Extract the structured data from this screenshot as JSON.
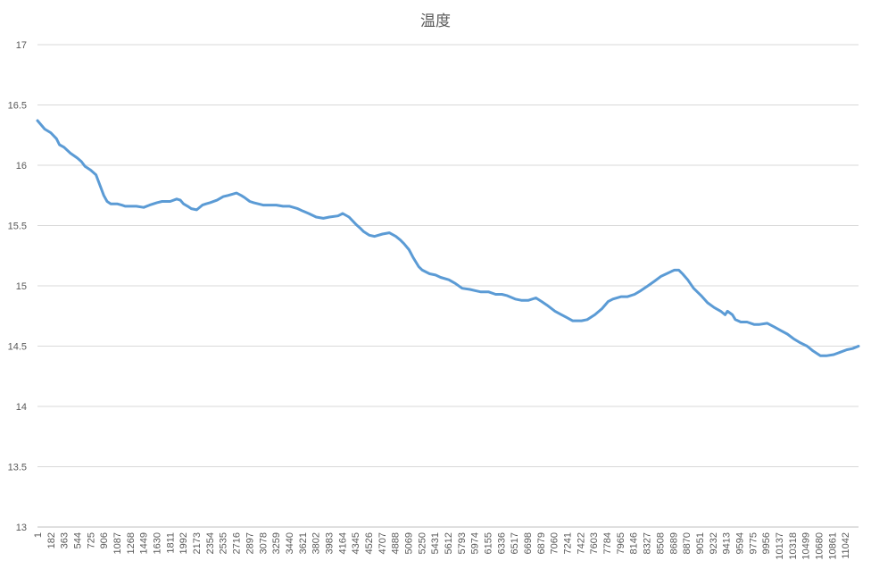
{
  "chart_data": {
    "type": "line",
    "title": "温度",
    "xlabel": "",
    "ylabel": "",
    "ylim": [
      13,
      17
    ],
    "yticks": [
      "13",
      "13.5",
      "14",
      "14.5",
      "15",
      "15.5",
      "16",
      "16.5",
      "17"
    ],
    "xlim": [
      1,
      11200
    ],
    "xtick_labels": [
      "1",
      "182",
      "363",
      "544",
      "725",
      "906",
      "1087",
      "1268",
      "1449",
      "1630",
      "1811",
      "1992",
      "2173",
      "2354",
      "2535",
      "2716",
      "2897",
      "3078",
      "3259",
      "3440",
      "3621",
      "3802",
      "3983",
      "4164",
      "4345",
      "4526",
      "4707",
      "4888",
      "5069",
      "5250",
      "5431",
      "5612",
      "5793",
      "5974",
      "6155",
      "6336",
      "6517",
      "6698",
      "6879",
      "7060",
      "7241",
      "7422",
      "7603",
      "7784",
      "7965",
      "8146",
      "8327",
      "8508",
      "8689",
      "8870",
      "9051",
      "9232",
      "9413",
      "9594",
      "9775",
      "9956",
      "10137",
      "10318",
      "10499",
      "10680",
      "10861",
      "11042"
    ],
    "grid": true,
    "legend": "none",
    "series": [
      {
        "color": "#5b9bd5",
        "x": [
          1,
          100,
          182,
          260,
          300,
          363,
          450,
          544,
          600,
          650,
          725,
          800,
          850,
          906,
          950,
          1000,
          1087,
          1150,
          1200,
          1268,
          1350,
          1449,
          1530,
          1630,
          1700,
          1811,
          1900,
          1950,
          1992,
          2050,
          2100,
          2173,
          2250,
          2300,
          2354,
          2450,
          2535,
          2600,
          2716,
          2780,
          2830,
          2897,
          2950,
          3078,
          3150,
          3259,
          3350,
          3440,
          3550,
          3621,
          3700,
          3802,
          3900,
          3983,
          4100,
          4164,
          4250,
          4345,
          4400,
          4450,
          4526,
          4600,
          4707,
          4800,
          4888,
          4950,
          5000,
          5069,
          5130,
          5200,
          5250,
          5350,
          5431,
          5500,
          5612,
          5700,
          5793,
          5900,
          5974,
          6050,
          6155,
          6250,
          6336,
          6400,
          6517,
          6600,
          6698,
          6800,
          6879,
          6950,
          7060,
          7150,
          7241,
          7300,
          7422,
          7500,
          7603,
          7700,
          7784,
          7850,
          7965,
          8050,
          8146,
          8230,
          8327,
          8420,
          8508,
          8580,
          8650,
          8689,
          8750,
          8800,
          8870,
          8950,
          9051,
          9140,
          9232,
          9320,
          9380,
          9413,
          9480,
          9520,
          9594,
          9680,
          9775,
          9850,
          9956,
          10050,
          10137,
          10230,
          10318,
          10400,
          10499,
          10580,
          10680,
          10760,
          10861,
          10950,
          11042,
          11120,
          11200
        ],
        "y": [
          16.37,
          16.3,
          16.27,
          16.22,
          16.17,
          16.15,
          16.1,
          16.06,
          16.03,
          15.99,
          15.96,
          15.92,
          15.84,
          15.75,
          15.7,
          15.68,
          15.68,
          15.67,
          15.66,
          15.66,
          15.66,
          15.65,
          15.67,
          15.69,
          15.7,
          15.7,
          15.72,
          15.71,
          15.68,
          15.66,
          15.64,
          15.63,
          15.67,
          15.68,
          15.69,
          15.71,
          15.74,
          15.75,
          15.77,
          15.75,
          15.73,
          15.7,
          15.69,
          15.67,
          15.67,
          15.67,
          15.66,
          15.66,
          15.64,
          15.62,
          15.6,
          15.57,
          15.56,
          15.57,
          15.58,
          15.6,
          15.57,
          15.51,
          15.48,
          15.45,
          15.42,
          15.41,
          15.43,
          15.44,
          15.41,
          15.38,
          15.35,
          15.3,
          15.23,
          15.16,
          15.13,
          15.1,
          15.09,
          15.07,
          15.05,
          15.02,
          14.98,
          14.97,
          14.96,
          14.95,
          14.95,
          14.93,
          14.93,
          14.92,
          14.89,
          14.88,
          14.88,
          14.9,
          14.87,
          14.84,
          14.79,
          14.76,
          14.73,
          14.71,
          14.71,
          14.72,
          14.76,
          14.81,
          14.87,
          14.89,
          14.91,
          14.91,
          14.93,
          14.96,
          15.0,
          15.04,
          15.08,
          15.1,
          15.12,
          15.13,
          15.13,
          15.1,
          15.05,
          14.98,
          14.92,
          14.86,
          14.82,
          14.79,
          14.76,
          14.79,
          14.76,
          14.72,
          14.7,
          14.7,
          14.68,
          14.68,
          14.69,
          14.66,
          14.63,
          14.6,
          14.56,
          14.53,
          14.5,
          14.46,
          14.42,
          14.42,
          14.43,
          14.45,
          14.47,
          14.48,
          14.5
        ]
      }
    ]
  }
}
